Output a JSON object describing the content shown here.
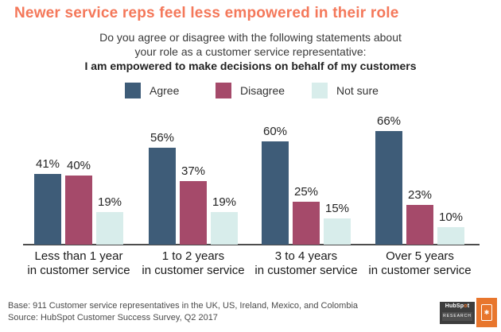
{
  "title": "Newer service reps feel less empowered in their role",
  "subtitle": {
    "line1": "Do you agree or disagree with the following statements about",
    "line2": "your role as a customer service representative:",
    "line3_bold": "I am empowered to make decisions on behalf of my customers"
  },
  "chart_data": {
    "type": "bar",
    "title": "I am empowered to make decisions on behalf of my customers",
    "categories": [
      {
        "line1": "Less than 1 year",
        "line2": "in customer service"
      },
      {
        "line1": "1 to 2 years",
        "line2": "in customer service"
      },
      {
        "line1": "3 to 4 years",
        "line2": "in customer service"
      },
      {
        "line1": "Over 5 years",
        "line2": "in customer service"
      }
    ],
    "series": [
      {
        "name": "Agree",
        "color": "#3e5c78",
        "values": [
          41,
          56,
          60,
          66
        ]
      },
      {
        "name": "Disagree",
        "color": "#a54a6a",
        "values": [
          40,
          37,
          25,
          23
        ]
      },
      {
        "name": "Not sure",
        "color": "#d8edeb",
        "values": [
          19,
          19,
          15,
          10
        ]
      }
    ],
    "value_suffix": "%",
    "ylim": [
      0,
      70
    ],
    "grid": false,
    "legend_position": "top",
    "xlabel": "",
    "ylabel": ""
  },
  "colors": {
    "title_orange": "#f4785a",
    "axis": "#4d4d4d",
    "logo_orange": "#e8762d",
    "logo_dark": "#3d3d3d"
  },
  "footer": {
    "line1": "Base: 911 Customer service representatives in the UK, US, Ireland, Mexico, and Colombia",
    "line2": "Source: HubSpot Customer Success Survey, Q2 2017"
  },
  "logo": {
    "brand_pre": "HubSp",
    "brand_o": "o",
    "brand_post": "t",
    "sub": "RESEARCH",
    "doc_glyph": "✱"
  }
}
